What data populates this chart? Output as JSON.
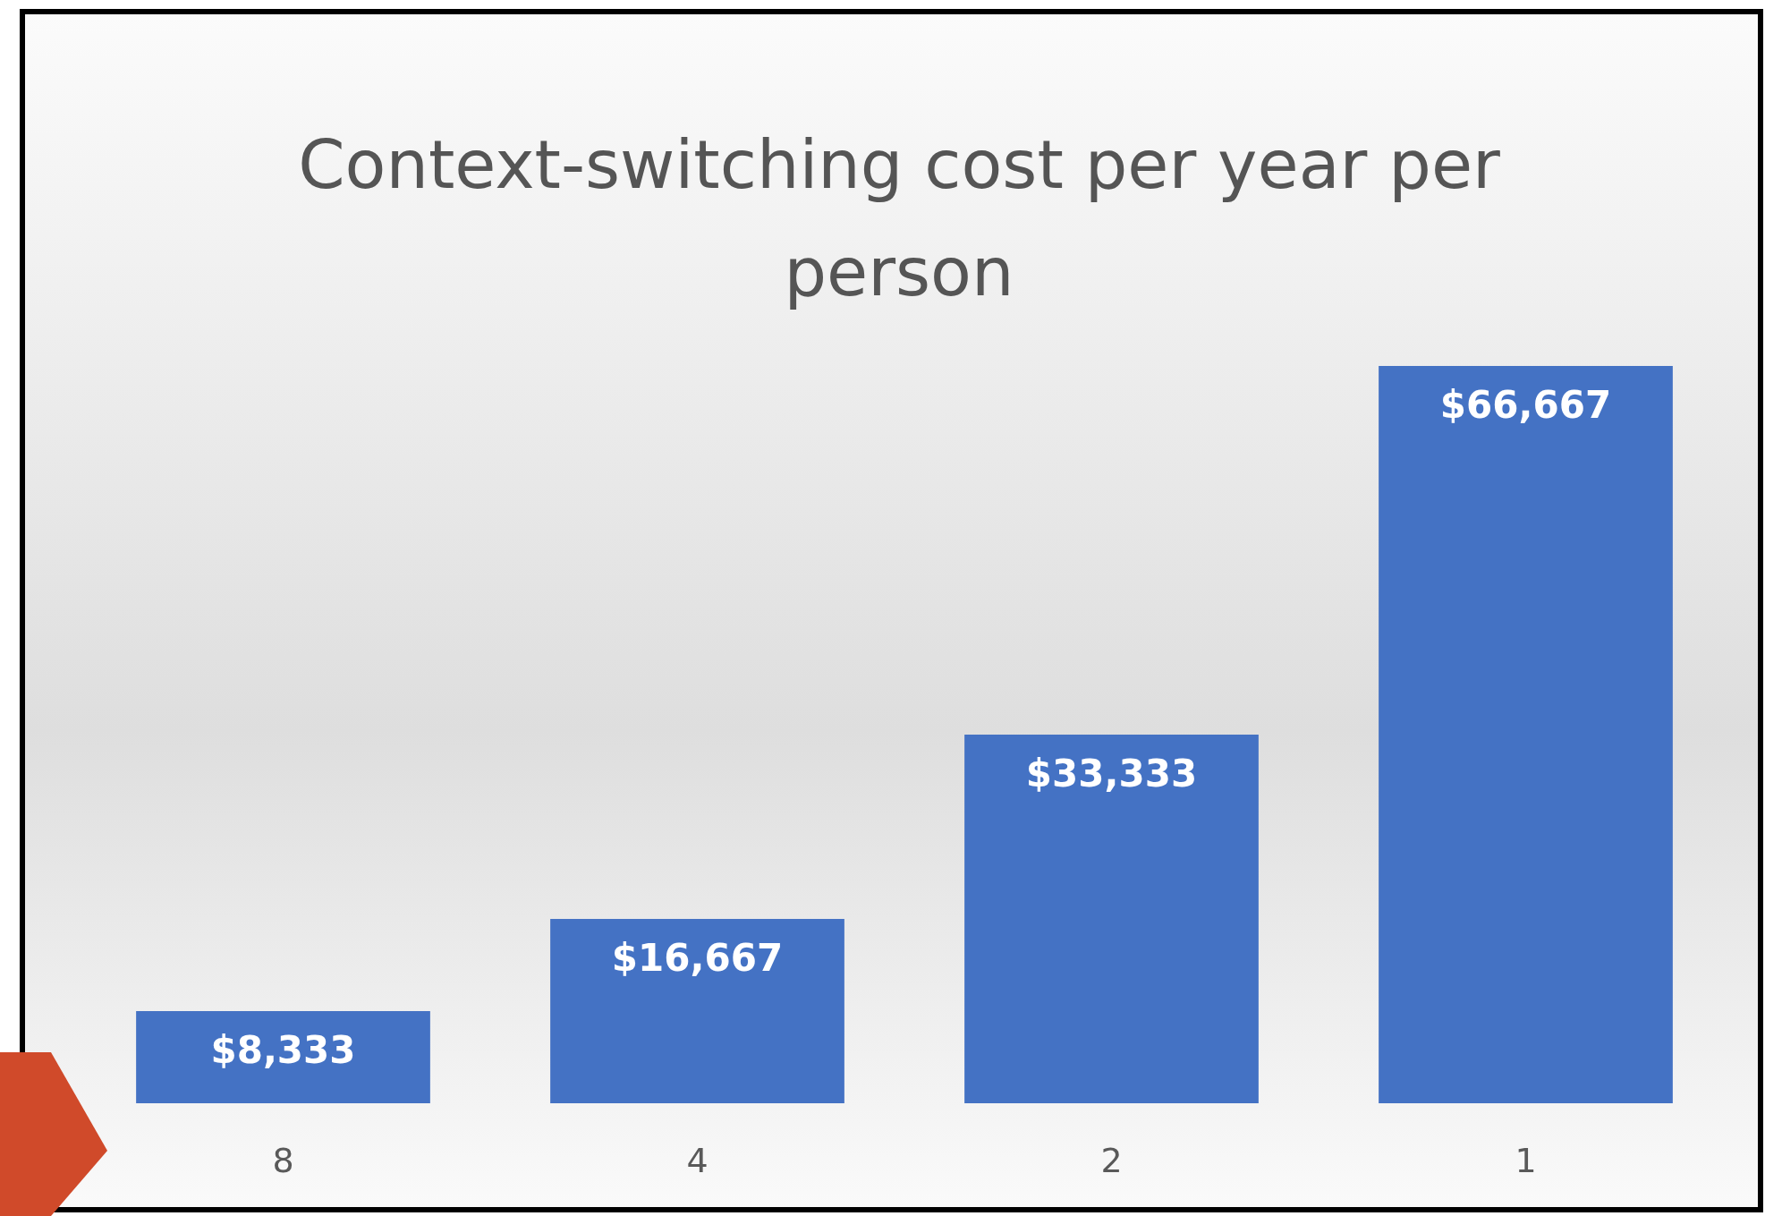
{
  "chart_data": {
    "type": "bar",
    "title": "Context-switching cost per year per person",
    "categories": [
      "8",
      "4",
      "2",
      "1"
    ],
    "values": [
      8333,
      16667,
      33333,
      66667
    ],
    "value_labels": [
      "$8,333",
      "$16,667",
      "$33,333",
      "$66,667"
    ],
    "color": "#4472c4"
  }
}
